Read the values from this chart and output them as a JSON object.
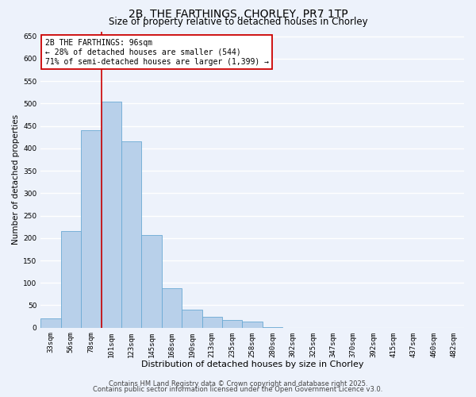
{
  "title": "2B, THE FARTHINGS, CHORLEY, PR7 1TP",
  "subtitle": "Size of property relative to detached houses in Chorley",
  "xlabel": "Distribution of detached houses by size in Chorley",
  "ylabel": "Number of detached properties",
  "bar_labels": [
    "33sqm",
    "56sqm",
    "78sqm",
    "101sqm",
    "123sqm",
    "145sqm",
    "168sqm",
    "190sqm",
    "213sqm",
    "235sqm",
    "258sqm",
    "280sqm",
    "302sqm",
    "325sqm",
    "347sqm",
    "370sqm",
    "392sqm",
    "415sqm",
    "437sqm",
    "460sqm",
    "482sqm"
  ],
  "bar_values": [
    20,
    215,
    440,
    505,
    415,
    207,
    88,
    40,
    25,
    18,
    13,
    2,
    0,
    0,
    0,
    0,
    0,
    0,
    0,
    0,
    0
  ],
  "bar_color": "#b8d0ea",
  "bar_edge_color": "#6aaad4",
  "vline_color": "#cc0000",
  "annotation_text": "2B THE FARTHINGS: 96sqm\n← 28% of detached houses are smaller (544)\n71% of semi-detached houses are larger (1,399) →",
  "annotation_box_color": "#ffffff",
  "annotation_box_edge_color": "#cc0000",
  "ylim_max": 660,
  "yticks": [
    0,
    50,
    100,
    150,
    200,
    250,
    300,
    350,
    400,
    450,
    500,
    550,
    600,
    650
  ],
  "footer_line1": "Contains HM Land Registry data © Crown copyright and database right 2025.",
  "footer_line2": "Contains public sector information licensed under the Open Government Licence v3.0.",
  "bg_color": "#edf2fb",
  "grid_color": "#ffffff",
  "title_fontsize": 10,
  "subtitle_fontsize": 8.5,
  "xlabel_fontsize": 8,
  "ylabel_fontsize": 7.5,
  "tick_fontsize": 6.5,
  "annotation_fontsize": 7.0,
  "footer_fontsize": 6.0
}
